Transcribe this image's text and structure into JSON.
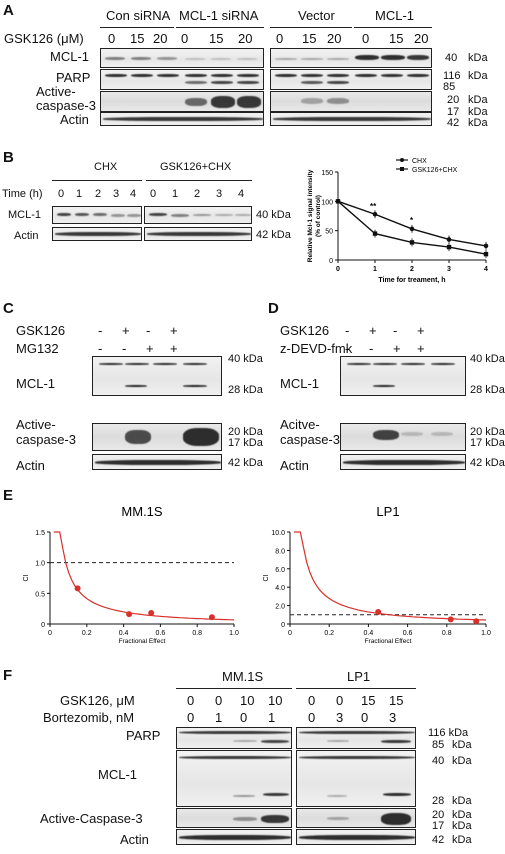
{
  "panelA": {
    "label": "A",
    "dose_label": "GSK126 (μM)",
    "groups": [
      "Con siRNA",
      "MCL-1 siRNA",
      "Vector",
      "MCL-1"
    ],
    "doses": [
      "0",
      "15",
      "20",
      "0",
      "15",
      "20",
      "0",
      "15",
      "20",
      "0",
      "15",
      "20"
    ],
    "rows": [
      "MCL-1",
      "PARP",
      "Active-\ncaspase-3",
      "Actin"
    ],
    "markers": [
      "40",
      "kDa",
      "116",
      "kDa",
      "85",
      "20",
      "kDa",
      "17",
      "kDa",
      "42",
      "kDa"
    ]
  },
  "panelB": {
    "label": "B",
    "groups": [
      "CHX",
      "GSK126+CHX"
    ],
    "time_label": "Time (h)",
    "times": [
      "0",
      "1",
      "2",
      "3",
      "4",
      "0",
      "1",
      "2",
      "3",
      "4"
    ],
    "rows": [
      "MCL-1",
      "Actin"
    ],
    "markers": [
      "40 kDa",
      "42 kDa"
    ]
  },
  "panelC": {
    "label": "C",
    "treatments": [
      "GSK126",
      "MG132"
    ],
    "signs": [
      [
        "-",
        "+",
        "-",
        "+"
      ],
      [
        "-",
        "-",
        "+",
        "+"
      ]
    ],
    "rows": [
      "MCL-1",
      "Active-\ncaspase-3",
      "Actin"
    ],
    "markers": [
      "40 kDa",
      "28 kDa",
      "20 kDa",
      "17 kDa",
      "42 kDa"
    ]
  },
  "panelD": {
    "label": "D",
    "treatments": [
      "GSK126",
      "z-DEVD-fmk"
    ],
    "signs": [
      [
        "-",
        "+",
        "-",
        "+"
      ],
      [
        "-",
        "-",
        "+",
        "+"
      ]
    ],
    "rows": [
      "MCL-1",
      "Acitve-\ncaspase-3",
      "Actin"
    ],
    "markers": [
      "40 kDa",
      "28 kDa",
      "20 kDa",
      "17 kDa",
      "42 kDa"
    ]
  },
  "panelE": {
    "label": "E"
  },
  "panelF": {
    "label": "F",
    "groups": [
      "MM.1S",
      "LP1"
    ],
    "row_gsk_label": "GSK126, μM",
    "row_bort_label": "Bortezomib, nM",
    "gsk": [
      "0",
      "0",
      "10",
      "10",
      "0",
      "0",
      "15",
      "15"
    ],
    "bort": [
      "0",
      "1",
      "0",
      "1",
      "0",
      "3",
      "0",
      "3"
    ],
    "rows": [
      "PARP",
      "MCL-1",
      "Active-Caspase-3",
      "Actin"
    ],
    "markers": [
      "116 kDa",
      "85",
      "kDa",
      "40",
      "kDa",
      "28",
      "kDa",
      "20",
      "kDa",
      "17",
      "kDa",
      "42",
      "kDa"
    ]
  },
  "chart_data": [
    {
      "type": "line",
      "ylabel": "Relative Mcl-1 signal intensity\n(% of control)",
      "xlabel": "Time for treament, h",
      "xlim": [
        0,
        4
      ],
      "ylim": [
        0,
        150
      ],
      "xticks": [
        "0",
        "1",
        "2",
        "3",
        "4"
      ],
      "yticks": [
        "0",
        "50",
        "100",
        "150"
      ],
      "legend_position": "top-right",
      "x": [
        0,
        1,
        2,
        3,
        4
      ],
      "series": [
        {
          "name": "CHX",
          "values": [
            100,
            78,
            53,
            35,
            24
          ]
        },
        {
          "name": "GSK126+CHX",
          "values": [
            100,
            45,
            30,
            22,
            10
          ]
        }
      ],
      "annotations": [
        "**",
        "*"
      ]
    },
    {
      "type": "scatter",
      "title": "MM.1S",
      "xlabel": "Fractional Effect",
      "ylabel": "CI",
      "xlim": [
        0,
        1.0
      ],
      "ylim": [
        0,
        1.5
      ],
      "xticks": [
        "0",
        "0.2",
        "0.4",
        "0.6",
        "0.8",
        "1.0"
      ],
      "yticks": [
        "0",
        "0.5",
        "1.0",
        "1.5"
      ],
      "points": {
        "x": [
          0.15,
          0.43,
          0.55,
          0.88
        ],
        "y": [
          0.58,
          0.16,
          0.18,
          0.11
        ]
      },
      "reference_line_y": 1.0
    },
    {
      "type": "scatter",
      "title": "LP1",
      "xlabel": "Fractional Effect",
      "ylabel": "CI",
      "xlim": [
        0,
        1.0
      ],
      "ylim": [
        0,
        10.0
      ],
      "xticks": [
        "0",
        "0.2",
        "0.4",
        "0.6",
        "0.8",
        "1.0"
      ],
      "yticks": [
        "0",
        "2.0",
        "4.0",
        "6.0",
        "8.0",
        "10.0"
      ],
      "points": {
        "x": [
          0.45,
          0.82,
          0.95
        ],
        "y": [
          1.3,
          0.5,
          0.3
        ]
      },
      "reference_line_y": 1.0
    }
  ]
}
